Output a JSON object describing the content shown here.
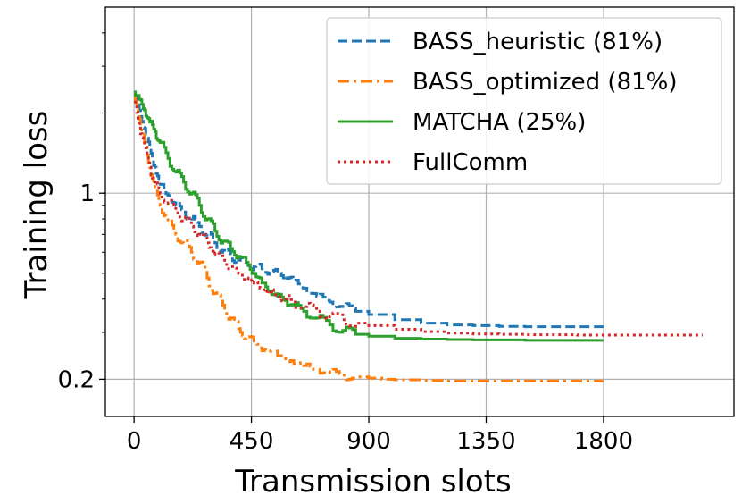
{
  "chart_data": {
    "type": "line",
    "title": "",
    "xlabel": "Transmission slots",
    "ylabel": "Training loss",
    "xlim": [
      -110,
      2300
    ],
    "ylim": [
      0.145,
      5.0
    ],
    "yscale": "log",
    "grid": true,
    "legend_position": "top-right",
    "xticks": [
      0,
      450,
      900,
      1350,
      1800
    ],
    "xtick_labels": [
      "0",
      "450",
      "900",
      "1350",
      "1800"
    ],
    "yticks": [
      0.2,
      1
    ],
    "ytick_labels": [
      "0.2",
      "1"
    ],
    "series": [
      {
        "name": "BASS_heuristic (81%)",
        "color": "#1f77b4",
        "dash": "dashed",
        "x": [
          0,
          20,
          40,
          60,
          80,
          100,
          130,
          160,
          190,
          220,
          250,
          280,
          310,
          340,
          370,
          400,
          430,
          460,
          490,
          520,
          550,
          580,
          610,
          650,
          700,
          750,
          800,
          850,
          900,
          1000,
          1100,
          1200,
          1300,
          1400,
          1500,
          1600,
          1700,
          1800
        ],
        "y": [
          2.35,
          2.05,
          1.75,
          1.45,
          1.25,
          1.08,
          0.98,
          0.9,
          0.85,
          0.8,
          0.75,
          0.7,
          0.65,
          0.61,
          0.58,
          0.56,
          0.55,
          0.53,
          0.52,
          0.51,
          0.5,
          0.49,
          0.47,
          0.44,
          0.41,
          0.39,
          0.375,
          0.36,
          0.35,
          0.335,
          0.325,
          0.32,
          0.318,
          0.316,
          0.315,
          0.315,
          0.315,
          0.315
        ]
      },
      {
        "name": "BASS_optimized (81%)",
        "color": "#ff7f0e",
        "dash": "dashdot",
        "x": [
          0,
          20,
          40,
          60,
          80,
          100,
          130,
          160,
          190,
          220,
          250,
          280,
          310,
          340,
          370,
          400,
          430,
          460,
          500,
          550,
          600,
          650,
          700,
          750,
          800,
          850,
          900,
          950,
          1000,
          1100,
          1200,
          1300,
          1400,
          1500,
          1600,
          1700,
          1800
        ],
        "y": [
          2.3,
          1.9,
          1.55,
          1.25,
          1.05,
          0.9,
          0.78,
          0.7,
          0.65,
          0.6,
          0.55,
          0.48,
          0.42,
          0.38,
          0.34,
          0.31,
          0.29,
          0.275,
          0.26,
          0.245,
          0.235,
          0.225,
          0.218,
          0.212,
          0.207,
          0.204,
          0.202,
          0.2,
          0.199,
          0.198,
          0.197,
          0.197,
          0.197,
          0.197,
          0.197,
          0.197,
          0.197
        ]
      },
      {
        "name": "MATCHA (25%)",
        "color": "#2ca02c",
        "dash": "solid",
        "x": [
          0,
          20,
          40,
          60,
          80,
          100,
          130,
          160,
          190,
          220,
          250,
          280,
          310,
          340,
          370,
          400,
          430,
          460,
          490,
          520,
          550,
          580,
          610,
          650,
          700,
          750,
          800,
          850,
          900,
          1000,
          1100,
          1200,
          1300,
          1400,
          1500,
          1600,
          1700,
          1800
        ],
        "y": [
          2.4,
          2.25,
          2.05,
          1.85,
          1.7,
          1.55,
          1.35,
          1.2,
          1.1,
          1.0,
          0.9,
          0.8,
          0.72,
          0.66,
          0.62,
          0.58,
          0.55,
          0.5,
          0.46,
          0.43,
          0.41,
          0.395,
          0.38,
          0.36,
          0.34,
          0.32,
          0.305,
          0.295,
          0.29,
          0.285,
          0.283,
          0.282,
          0.281,
          0.281,
          0.28,
          0.28,
          0.28,
          0.28
        ]
      },
      {
        "name": "FullComm",
        "color": "#d62728",
        "dash": "dotted",
        "x": [
          0,
          20,
          40,
          60,
          80,
          100,
          130,
          160,
          190,
          220,
          250,
          280,
          310,
          340,
          370,
          400,
          430,
          460,
          490,
          520,
          550,
          580,
          610,
          650,
          700,
          750,
          800,
          850,
          900,
          1000,
          1100,
          1200,
          1300,
          1400,
          1500,
          1600,
          1700,
          1800,
          1900,
          2000,
          2100,
          2180
        ],
        "y": [
          2.2,
          1.8,
          1.5,
          1.25,
          1.1,
          1.0,
          0.92,
          0.86,
          0.8,
          0.75,
          0.7,
          0.65,
          0.6,
          0.56,
          0.53,
          0.5,
          0.48,
          0.46,
          0.44,
          0.425,
          0.41,
          0.4,
          0.39,
          0.375,
          0.36,
          0.345,
          0.335,
          0.325,
          0.318,
          0.308,
          0.302,
          0.298,
          0.296,
          0.295,
          0.294,
          0.294,
          0.293,
          0.293,
          0.293,
          0.293,
          0.293,
          0.293
        ]
      }
    ]
  }
}
